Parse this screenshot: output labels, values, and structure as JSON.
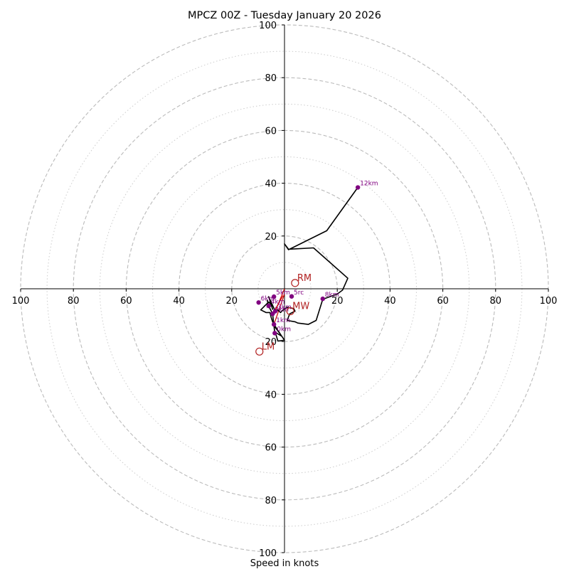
{
  "chart_data": {
    "type": "hodograph",
    "title": "MPCZ 00Z - Tuesday January 20 2026",
    "xlabel": "Speed in knots",
    "range_knots": 100,
    "major_rings": [
      20,
      40,
      60,
      80,
      100
    ],
    "minor_rings": [
      10,
      30,
      50,
      70,
      90
    ],
    "x_tick_labels": [
      "100",
      "80",
      "60",
      "40",
      "20",
      "20",
      "40",
      "60",
      "80",
      "100"
    ],
    "x_tick_values": [
      -100,
      -80,
      -60,
      -40,
      -20,
      20,
      40,
      60,
      80,
      100
    ],
    "y_tick_labels": [
      "100",
      "80",
      "60",
      "40",
      "20",
      "20",
      "40",
      "60",
      "80",
      "100"
    ],
    "y_tick_values": [
      100,
      80,
      60,
      40,
      20,
      -20,
      -40,
      -60,
      -80,
      -100
    ],
    "colors": {
      "trace": "#000000",
      "height_marker": "#800080",
      "motion": "#b22222",
      "inflow": "#cc0000",
      "grid": "#bbbbbb",
      "axis": "#000000"
    },
    "hodograph_trace": [
      [
        -6.6,
        -4.2
      ],
      [
        -6.0,
        -6.5
      ],
      [
        -5.0,
        -8.5
      ],
      [
        -4.5,
        -9.5
      ],
      [
        -3.7,
        -16.8
      ],
      [
        -4.0,
        -13.5
      ],
      [
        -1.3,
        -17.6
      ],
      [
        0.0,
        -19.5
      ],
      [
        -2.5,
        -19.8
      ],
      [
        -3.5,
        -16.5
      ],
      [
        -1.0,
        -18.0
      ],
      [
        -4.0,
        -14.0
      ],
      [
        -5.0,
        -11.0
      ],
      [
        -5.5,
        -9.0
      ],
      [
        -7.0,
        -9.0
      ],
      [
        -9.0,
        -8.0
      ],
      [
        -6.0,
        -5.0
      ],
      [
        -5.0,
        -6.0
      ],
      [
        -4.5,
        -7.8
      ],
      [
        -6.0,
        -3.0
      ],
      [
        -3.5,
        -8.5
      ],
      [
        -2.5,
        -8.0
      ],
      [
        -1.5,
        -9.0
      ],
      [
        -0.5,
        -8.0
      ],
      [
        1.0,
        -7.0
      ],
      [
        3.5,
        -7.5
      ],
      [
        4.0,
        -8.5
      ],
      [
        2.0,
        -9.5
      ],
      [
        1.0,
        -12.0
      ],
      [
        4.0,
        -12.5
      ],
      [
        5.0,
        -13.0
      ],
      [
        9.0,
        -13.5
      ],
      [
        12.0,
        -12.0
      ],
      [
        14.5,
        -4.0
      ],
      [
        20.0,
        -2.0
      ],
      [
        22.0,
        -0.5
      ],
      [
        24.0,
        4.0
      ],
      [
        11.0,
        15.5
      ],
      [
        1.5,
        15.0
      ],
      [
        0.0,
        17.0
      ],
      [
        1.5,
        14.8
      ],
      [
        16.0,
        22.0
      ],
      [
        27.8,
        38.4
      ]
    ],
    "height_markers": [
      {
        "label": "0km",
        "u": -3.7,
        "v": -16.8
      },
      {
        "label": "1km",
        "u": -4.0,
        "v": -13.5
      },
      {
        "label": "2km",
        "u": -4.5,
        "v": -9.5
      },
      {
        "label": "3km",
        "u": -3.5,
        "v": -8.5
      },
      {
        "label": "4km",
        "u": -6.0,
        "v": -6.5
      },
      {
        "label": "5km",
        "u": -4.0,
        "v": -3.0
      },
      {
        "label": "6km",
        "u": -9.8,
        "v": -5.2
      },
      {
        "label": "8km",
        "u": 14.5,
        "v": -3.8
      },
      {
        "label": "12km",
        "u": 27.8,
        "v": 38.4
      }
    ],
    "mean_wind_marker": {
      "label": "5rc",
      "u": 2.7,
      "v": -2.9
    },
    "storm_motions": [
      {
        "label": "RM",
        "u": 4.0,
        "v": 2.2
      },
      {
        "label": "LM",
        "u": -9.5,
        "v": -23.8
      },
      {
        "label": "MW",
        "u": 2.2,
        "v": -8.5
      }
    ],
    "inflow_vectors": [
      {
        "from": [
          -4.0,
          -13.5
        ],
        "to": [
          0.0,
          -2.0
        ]
      },
      {
        "from": [
          -3.5,
          -8.5
        ],
        "to": [
          0.0,
          0.0
        ]
      },
      {
        "from": [
          -4.5,
          -9.5
        ],
        "to": [
          -0.5,
          -2.5
        ]
      }
    ]
  }
}
